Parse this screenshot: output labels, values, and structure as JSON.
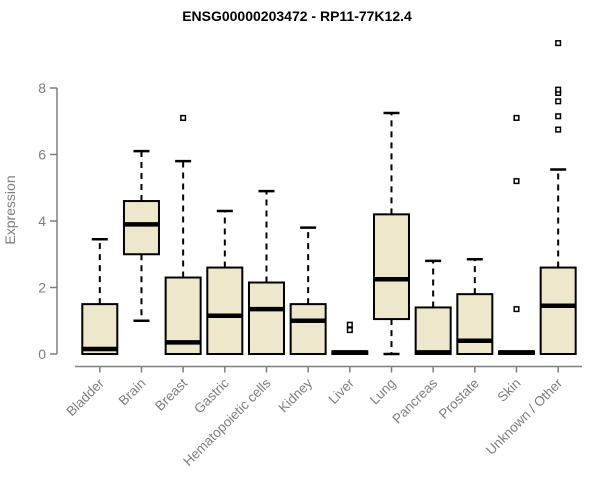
{
  "chart_data": {
    "type": "boxplot",
    "title": "ENSG00000203472 - RP11-77K12.4",
    "ylabel": "Expression",
    "xlabel": "",
    "ylim": [
      0,
      9.5
    ],
    "yticks": [
      0,
      2,
      4,
      6,
      8
    ],
    "grid": false,
    "legend": "none",
    "box_fill": "#EDE7CB",
    "box_stroke": "#000000",
    "axis_color": "#7E7E7E",
    "title_color": "#000000",
    "categories": [
      "Bladder",
      "Brain",
      "Breast",
      "Gastric",
      "Hematopoietic cells",
      "Kidney",
      "Liver",
      "Lung",
      "Pancreas",
      "Prostate",
      "Skin",
      "Unknown / Other"
    ],
    "series": [
      {
        "name": "Bladder",
        "low": 0,
        "q1": 0,
        "median": 0.15,
        "q3": 1.5,
        "high": 3.45,
        "outliers": []
      },
      {
        "name": "Brain",
        "low": 1.0,
        "q1": 3.0,
        "median": 3.9,
        "q3": 4.6,
        "high": 6.1,
        "outliers": []
      },
      {
        "name": "Breast",
        "low": 0,
        "q1": 0,
        "median": 0.35,
        "q3": 2.3,
        "high": 5.8,
        "outliers": [
          7.1
        ]
      },
      {
        "name": "Gastric",
        "low": 0,
        "q1": 0,
        "median": 1.15,
        "q3": 2.6,
        "high": 4.3,
        "outliers": []
      },
      {
        "name": "Hematopoietic cells",
        "low": 0,
        "q1": 0,
        "median": 1.35,
        "q3": 2.15,
        "high": 4.9,
        "outliers": []
      },
      {
        "name": "Kidney",
        "low": 0,
        "q1": 0,
        "median": 1.0,
        "q3": 1.5,
        "high": 3.8,
        "outliers": []
      },
      {
        "name": "Liver",
        "low": 0,
        "q1": 0,
        "median": 0.05,
        "q3": 0.08,
        "high": 0.08,
        "outliers": [
          0.72,
          0.88
        ]
      },
      {
        "name": "Lung",
        "low": 0,
        "q1": 1.05,
        "median": 2.25,
        "q3": 4.2,
        "high": 7.25,
        "outliers": []
      },
      {
        "name": "Pancreas",
        "low": 0,
        "q1": 0,
        "median": 0.05,
        "q3": 1.4,
        "high": 2.8,
        "outliers": []
      },
      {
        "name": "Prostate",
        "low": 0,
        "q1": 0,
        "median": 0.4,
        "q3": 1.8,
        "high": 2.85,
        "outliers": []
      },
      {
        "name": "Skin",
        "low": 0,
        "q1": 0,
        "median": 0.05,
        "q3": 0.08,
        "high": 0.08,
        "outliers": [
          1.35,
          5.2,
          7.1
        ]
      },
      {
        "name": "Unknown / Other",
        "low": 0,
        "q1": 0,
        "median": 1.45,
        "q3": 2.6,
        "high": 5.55,
        "outliers": [
          6.75,
          7.15,
          7.6,
          7.85,
          7.95,
          9.35
        ]
      }
    ]
  }
}
